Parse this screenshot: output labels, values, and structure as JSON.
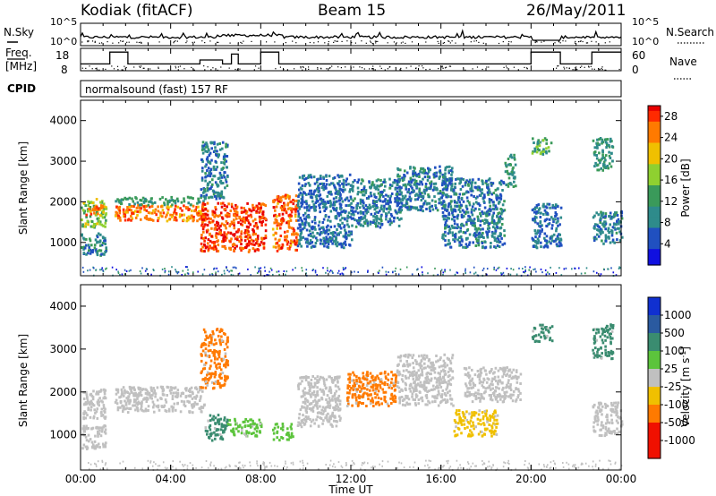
{
  "header": {
    "station": "Kodiak (fitACF)",
    "beam": "Beam 15",
    "date": "26/May/2011"
  },
  "status_panels": {
    "nsky_label": "N.Sky",
    "nsearch_label": "N.Search",
    "freq_label": "Freq.",
    "freq_unit": "[MHz]",
    "nave_label": "Nave",
    "cpid_label": "CPID",
    "cpid_value": "normalsound (fast) 157 RF",
    "noise_left_ticks": [
      "10^5",
      "10^0"
    ],
    "noise_right_ticks": [
      "10^5",
      "10^0"
    ],
    "freq_ticks": [
      "18",
      "8"
    ],
    "nave_ticks": [
      "60",
      "0"
    ],
    "freq_segments": [
      {
        "start": 0,
        "end": 1.3,
        "freq": 11
      },
      {
        "start": 1.3,
        "end": 2.1,
        "freq": 17
      },
      {
        "start": 2.1,
        "end": 5.3,
        "freq": 11
      },
      {
        "start": 5.3,
        "end": 6.3,
        "freq": 13
      },
      {
        "start": 6.3,
        "end": 6.7,
        "freq": 11
      },
      {
        "start": 6.7,
        "end": 7.0,
        "freq": 16
      },
      {
        "start": 7.0,
        "end": 8.0,
        "freq": 11
      },
      {
        "start": 8.0,
        "end": 8.8,
        "freq": 17
      },
      {
        "start": 8.8,
        "end": 20.0,
        "freq": 11
      },
      {
        "start": 20.0,
        "end": 21.3,
        "freq": 17
      },
      {
        "start": 21.3,
        "end": 22.7,
        "freq": 11
      },
      {
        "start": 22.7,
        "end": 24.0,
        "freq": 17
      }
    ]
  },
  "chart_data": [
    {
      "type": "heatmap",
      "quantity": "power",
      "ylabel": "Slant Range [km]",
      "ylim": [
        180,
        4500
      ],
      "yticks": [
        1000,
        2000,
        3000,
        4000
      ],
      "colorbar": {
        "label": "Power [dB]",
        "ticks": [
          "28",
          "24",
          "20",
          "16",
          "12",
          "8",
          "4"
        ],
        "range": [
          0,
          30
        ]
      },
      "regions": [
        {
          "t0": 0.0,
          "t1": 1.1,
          "r0": 700,
          "r1": 1250,
          "value": 10
        },
        {
          "t0": 0.0,
          "t1": 1.1,
          "r0": 1400,
          "r1": 2100,
          "value": 17
        },
        {
          "t0": 0.2,
          "t1": 1.0,
          "r0": 1700,
          "r1": 1950,
          "value": 26
        },
        {
          "t0": 1.5,
          "t1": 5.5,
          "r0": 1550,
          "r1": 1950,
          "value": 26
        },
        {
          "t0": 1.5,
          "t1": 5.5,
          "r0": 1950,
          "r1": 2150,
          "value": 12
        },
        {
          "t0": 5.3,
          "t1": 8.2,
          "r0": 800,
          "r1": 2000,
          "value": 29
        },
        {
          "t0": 5.3,
          "t1": 6.5,
          "r0": 2100,
          "r1": 3500,
          "value": 9
        },
        {
          "t0": 8.5,
          "t1": 9.6,
          "r0": 800,
          "r1": 2200,
          "value": 27
        },
        {
          "t0": 9.6,
          "t1": 12.0,
          "r0": 900,
          "r1": 2700,
          "value": 8
        },
        {
          "t0": 12.0,
          "t1": 14.2,
          "r0": 1400,
          "r1": 2600,
          "value": 9
        },
        {
          "t0": 14.0,
          "t1": 16.5,
          "r0": 1800,
          "r1": 2900,
          "value": 9
        },
        {
          "t0": 16.0,
          "t1": 18.8,
          "r0": 900,
          "r1": 2600,
          "value": 9
        },
        {
          "t0": 18.8,
          "t1": 19.3,
          "r0": 2400,
          "r1": 3200,
          "value": 12
        },
        {
          "t0": 20.0,
          "t1": 20.9,
          "r0": 3200,
          "r1": 3600,
          "value": 14
        },
        {
          "t0": 20.0,
          "t1": 21.3,
          "r0": 900,
          "r1": 2000,
          "value": 8
        },
        {
          "t0": 22.7,
          "t1": 23.6,
          "r0": 2800,
          "r1": 3600,
          "value": 12
        },
        {
          "t0": 22.7,
          "t1": 24.0,
          "r0": 1000,
          "r1": 1800,
          "value": 9
        }
      ]
    },
    {
      "type": "heatmap",
      "quantity": "velocity",
      "xlabel": "Time UT",
      "ylabel": "Slant Range [km]",
      "ylim": [
        180,
        4500
      ],
      "yticks": [
        1000,
        2000,
        3000,
        4000
      ],
      "xticks": [
        "00:00",
        "04:00",
        "08:00",
        "12:00",
        "16:00",
        "20:00",
        "00:00"
      ],
      "xlim": [
        0,
        24
      ],
      "colorbar": {
        "label": "Velocity [m s",
        "label_exp": "-1",
        "label_end": "]",
        "ticks": [
          "1000",
          "500",
          "100",
          "25",
          "-25",
          "-100",
          "-500",
          "-1000"
        ]
      },
      "regions": [
        {
          "t0": 0.0,
          "t1": 1.1,
          "r0": 700,
          "r1": 1250,
          "value": 0
        },
        {
          "t0": 0.0,
          "t1": 1.1,
          "r0": 1400,
          "r1": 2100,
          "value": 0
        },
        {
          "t0": 1.5,
          "t1": 5.5,
          "r0": 1550,
          "r1": 2150,
          "value": 0
        },
        {
          "t0": 5.5,
          "t1": 6.5,
          "r0": 900,
          "r1": 1500,
          "value": 400
        },
        {
          "t0": 6.5,
          "t1": 8.0,
          "r0": 1000,
          "r1": 1400,
          "value": 60
        },
        {
          "t0": 8.5,
          "t1": 9.4,
          "r0": 900,
          "r1": 1300,
          "value": 60
        },
        {
          "t0": 5.3,
          "t1": 6.5,
          "r0": 2100,
          "r1": 3500,
          "value": -150
        },
        {
          "t0": 9.6,
          "t1": 11.5,
          "r0": 1200,
          "r1": 2400,
          "value": 0
        },
        {
          "t0": 11.8,
          "t1": 14.0,
          "r0": 1700,
          "r1": 2500,
          "value": -300
        },
        {
          "t0": 14.0,
          "t1": 16.5,
          "r0": 1700,
          "r1": 2900,
          "value": 0
        },
        {
          "t0": 16.5,
          "t1": 18.5,
          "r0": 1000,
          "r1": 1600,
          "value": -80
        },
        {
          "t0": 17.0,
          "t1": 19.5,
          "r0": 1800,
          "r1": 2600,
          "value": 0
        },
        {
          "t0": 20.0,
          "t1": 20.9,
          "r0": 3200,
          "r1": 3600,
          "value": 300
        },
        {
          "t0": 22.7,
          "t1": 23.6,
          "r0": 2800,
          "r1": 3600,
          "value": 300
        },
        {
          "t0": 22.7,
          "t1": 24.0,
          "r0": 1000,
          "r1": 1800,
          "value": 0
        }
      ]
    }
  ]
}
